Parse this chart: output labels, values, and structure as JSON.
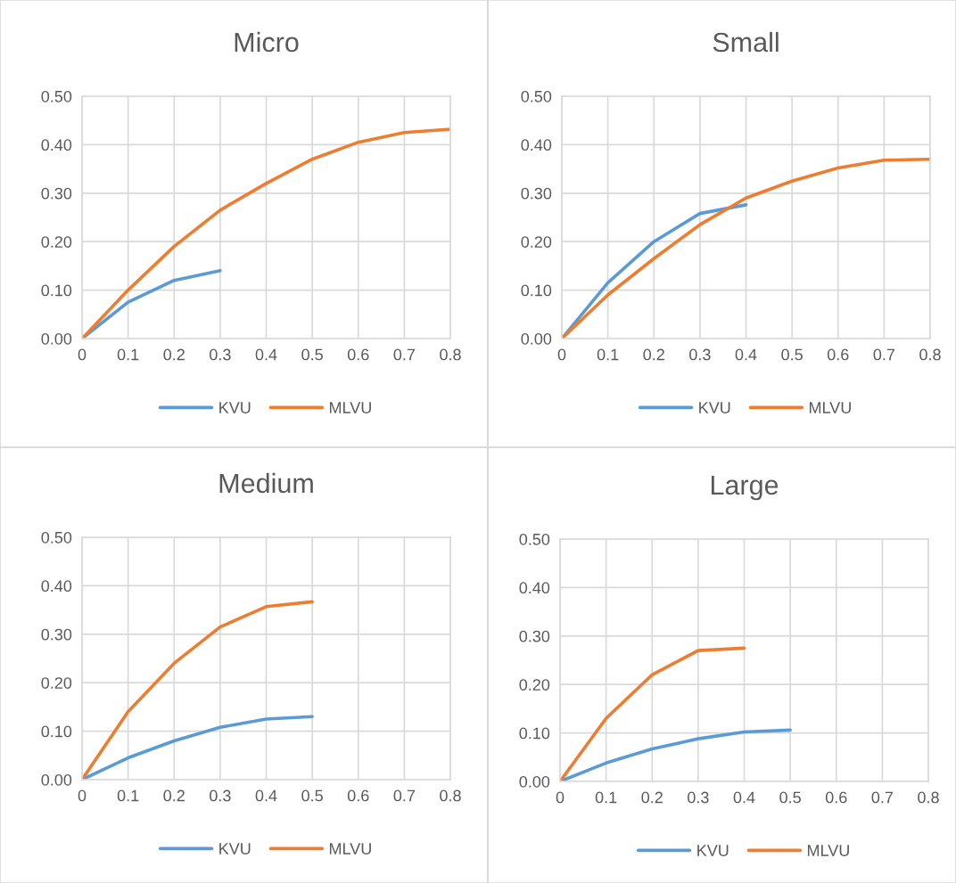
{
  "chart_data": [
    {
      "type": "line",
      "title": "Micro",
      "xlim": [
        0,
        0.8
      ],
      "xticks": [
        0,
        0.1,
        0.2,
        0.3,
        0.4,
        0.5,
        0.6,
        0.7,
        0.8
      ],
      "ylim": [
        0,
        0.5
      ],
      "yticks": [
        {
          "value": 0,
          "label": "0.00"
        },
        {
          "value": 0.1,
          "label": "0.10"
        },
        {
          "value": 0.2,
          "label": "0.20"
        },
        {
          "value": 0.3,
          "label": "0.30"
        },
        {
          "value": 0.4,
          "label": "0.40"
        },
        {
          "value": 0.5,
          "label": "0.50"
        }
      ],
      "grid": true,
      "legend": "bottom",
      "marker": "none",
      "line_style": "solid",
      "series": [
        {
          "name": "KVU",
          "color": "#5b9bd5",
          "x": [
            0,
            0.1,
            0.2,
            0.3
          ],
          "values": [
            0,
            0.075,
            0.12,
            0.14
          ]
        },
        {
          "name": "MLVU",
          "color": "#ed7d31",
          "x": [
            0,
            0.1,
            0.2,
            0.3,
            0.4,
            0.5,
            0.6,
            0.7,
            0.8
          ],
          "values": [
            0,
            0.1,
            0.19,
            0.265,
            0.32,
            0.37,
            0.405,
            0.425,
            0.432
          ]
        }
      ]
    },
    {
      "type": "line",
      "title": "Small",
      "xlim": [
        0,
        0.8
      ],
      "xticks": [
        0,
        0.1,
        0.2,
        0.3,
        0.4,
        0.5,
        0.6,
        0.7,
        0.8
      ],
      "ylim": [
        0,
        0.5
      ],
      "yticks": [
        {
          "value": 0,
          "label": "0.00"
        },
        {
          "value": 0.1,
          "label": "0.10"
        },
        {
          "value": 0.2,
          "label": "0.20"
        },
        {
          "value": 0.3,
          "label": "0.30"
        },
        {
          "value": 0.4,
          "label": "0.40"
        },
        {
          "value": 0.5,
          "label": "0.50"
        }
      ],
      "grid": true,
      "legend": "bottom",
      "marker": "none",
      "line_style": "solid",
      "series": [
        {
          "name": "KVU",
          "color": "#5b9bd5",
          "x": [
            0,
            0.1,
            0.2,
            0.3,
            0.4
          ],
          "values": [
            0,
            0.115,
            0.2,
            0.258,
            0.276
          ]
        },
        {
          "name": "MLVU",
          "color": "#ed7d31",
          "x": [
            0,
            0.1,
            0.2,
            0.3,
            0.4,
            0.5,
            0.6,
            0.7,
            0.8
          ],
          "values": [
            0,
            0.09,
            0.165,
            0.235,
            0.29,
            0.325,
            0.352,
            0.368,
            0.37
          ]
        }
      ]
    },
    {
      "type": "line",
      "title": "Medium",
      "xlim": [
        0,
        0.8
      ],
      "xticks": [
        0,
        0.1,
        0.2,
        0.3,
        0.4,
        0.5,
        0.6,
        0.7,
        0.8
      ],
      "ylim": [
        0,
        0.5
      ],
      "yticks": [
        {
          "value": 0,
          "label": "0.00"
        },
        {
          "value": 0.1,
          "label": "0.10"
        },
        {
          "value": 0.2,
          "label": "0.20"
        },
        {
          "value": 0.3,
          "label": "0.30"
        },
        {
          "value": 0.4,
          "label": "0.40"
        },
        {
          "value": 0.5,
          "label": "0.50"
        }
      ],
      "grid": true,
      "legend": "bottom",
      "marker": "none",
      "line_style": "solid",
      "series": [
        {
          "name": "KVU",
          "color": "#5b9bd5",
          "x": [
            0,
            0.1,
            0.2,
            0.3,
            0.4,
            0.5
          ],
          "values": [
            0,
            0.045,
            0.08,
            0.108,
            0.125,
            0.13
          ]
        },
        {
          "name": "MLVU",
          "color": "#ed7d31",
          "x": [
            0,
            0.1,
            0.2,
            0.3,
            0.4,
            0.5
          ],
          "values": [
            0,
            0.14,
            0.24,
            0.315,
            0.357,
            0.367
          ]
        }
      ]
    },
    {
      "type": "line",
      "title": "Large",
      "xlim": [
        0,
        0.8
      ],
      "xticks": [
        0,
        0.1,
        0.2,
        0.3,
        0.4,
        0.5,
        0.6,
        0.7,
        0.8
      ],
      "ylim": [
        0,
        0.5
      ],
      "yticks": [
        {
          "value": 0,
          "label": "0.00"
        },
        {
          "value": 0.1,
          "label": "0.10"
        },
        {
          "value": 0.2,
          "label": "0.20"
        },
        {
          "value": 0.3,
          "label": "0.30"
        },
        {
          "value": 0.4,
          "label": "0.40"
        },
        {
          "value": 0.5,
          "label": "0.50"
        }
      ],
      "grid": true,
      "legend": "bottom",
      "marker": "none",
      "line_style": "solid",
      "series": [
        {
          "name": "KVU",
          "color": "#5b9bd5",
          "x": [
            0,
            0.1,
            0.2,
            0.3,
            0.4,
            0.5
          ],
          "values": [
            0,
            0.038,
            0.067,
            0.088,
            0.102,
            0.106
          ]
        },
        {
          "name": "MLVU",
          "color": "#ed7d31",
          "x": [
            0,
            0.1,
            0.2,
            0.3,
            0.4
          ],
          "values": [
            0,
            0.13,
            0.22,
            0.27,
            0.275
          ]
        }
      ]
    }
  ]
}
